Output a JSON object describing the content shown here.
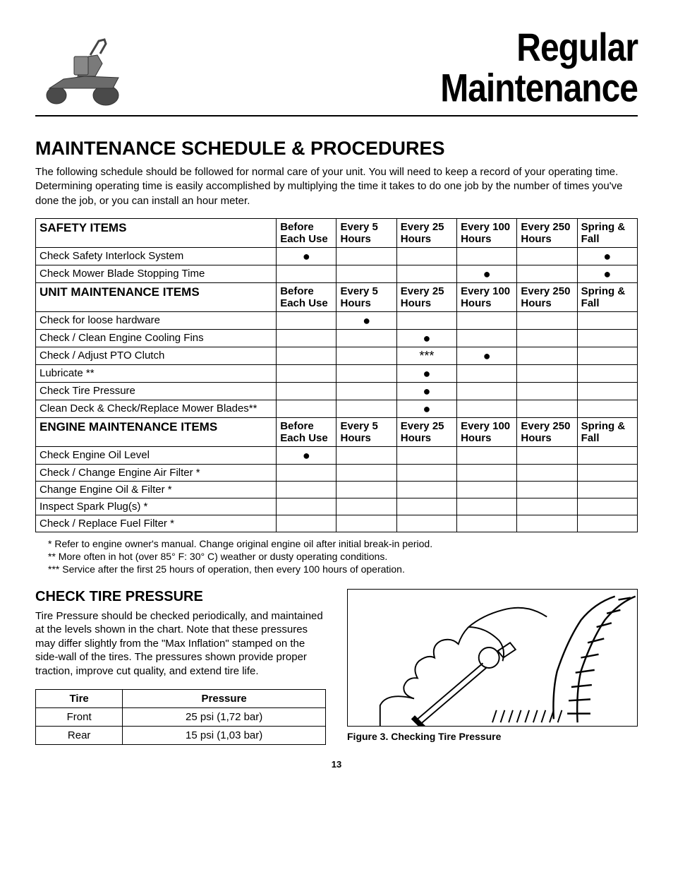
{
  "header": {
    "title_line1": "Regular",
    "title_line2": "Maintenance"
  },
  "section1": {
    "heading": "MAINTENANCE SCHEDULE & PROCEDURES",
    "intro": "The following schedule should be followed for normal care of your unit. You will need to keep a record of your operating time. Determining operating time is easily accomplished by multiplying the time it takes to do one job by the number of times you've done the job, or you can install an hour meter."
  },
  "schedule": {
    "columns": [
      "Before Each Use",
      "Every 5 Hours",
      "Every 25 Hours",
      "Every 100 Hours",
      "Every 250 Hours",
      "Spring & Fall"
    ],
    "groups": [
      {
        "title": "SAFETY ITEMS",
        "rows": [
          {
            "label": "Check Safety Interlock System",
            "marks": [
              "●",
              "",
              "",
              "",
              "",
              "●"
            ]
          },
          {
            "label": "Check Mower Blade Stopping Time",
            "marks": [
              "",
              "",
              "",
              "●",
              "",
              "●"
            ]
          }
        ]
      },
      {
        "title": "UNIT MAINTENANCE ITEMS",
        "rows": [
          {
            "label": "Check for loose hardware",
            "marks": [
              "",
              "●",
              "",
              "",
              "",
              ""
            ]
          },
          {
            "label": "Check / Clean Engine Cooling Fins",
            "marks": [
              "",
              "",
              "●",
              "",
              "",
              ""
            ]
          },
          {
            "label": "Check / Adjust PTO Clutch",
            "marks": [
              "",
              "",
              "***",
              "●",
              "",
              ""
            ]
          },
          {
            "label": "Lubricate **",
            "marks": [
              "",
              "",
              "●",
              "",
              "",
              ""
            ]
          },
          {
            "label": "Check Tire Pressure",
            "marks": [
              "",
              "",
              "●",
              "",
              "",
              ""
            ]
          },
          {
            "label": "Clean Deck & Check/Replace Mower Blades**",
            "marks": [
              "",
              "",
              "●",
              "",
              "",
              ""
            ]
          }
        ]
      },
      {
        "title": "ENGINE MAINTENANCE ITEMS",
        "rows": [
          {
            "label": "Check Engine Oil Level",
            "marks": [
              "●",
              "",
              "",
              "",
              "",
              ""
            ]
          },
          {
            "label": "Check / Change Engine Air Filter *",
            "marks": [
              "",
              "",
              "",
              "",
              "",
              ""
            ]
          },
          {
            "label": "Change Engine Oil & Filter *",
            "marks": [
              "",
              "",
              "",
              "",
              "",
              ""
            ]
          },
          {
            "label": "Inspect Spark Plug(s) *",
            "marks": [
              "",
              "",
              "",
              "",
              "",
              ""
            ]
          },
          {
            "label": "Check / Replace Fuel Filter *",
            "marks": [
              "",
              "",
              "",
              "",
              "",
              ""
            ]
          }
        ]
      }
    ]
  },
  "footnotes": [
    "* Refer to engine owner's manual.  Change original engine oil after initial break-in period.",
    "** More often in hot (over 85° F: 30° C) weather or dusty operating conditions.",
    "*** Service after the first 25 hours of operation, then every 100 hours of operation."
  ],
  "section2": {
    "heading": "CHECK TIRE PRESSURE",
    "body": "Tire Pressure should be checked periodically, and maintained at the levels shown in the chart. Note that these pressures may differ slightly from the \"Max Inflation\" stamped on the side-wall of the tires. The pressures shown provide proper traction, improve cut quality, and extend tire life."
  },
  "tire_table": {
    "headers": [
      "Tire",
      "Pressure"
    ],
    "rows": [
      [
        "Front",
        "25 psi (1,72 bar)"
      ],
      [
        "Rear",
        "15 psi (1,03 bar)"
      ]
    ],
    "col_widths": [
      "30%",
      "70%"
    ]
  },
  "figure": {
    "caption": "Figure 3.  Checking Tire Pressure"
  },
  "page_number": "13",
  "colors": {
    "text": "#000000",
    "border": "#000000",
    "bg": "#ffffff",
    "mower_gray": "#6b6b6b"
  }
}
